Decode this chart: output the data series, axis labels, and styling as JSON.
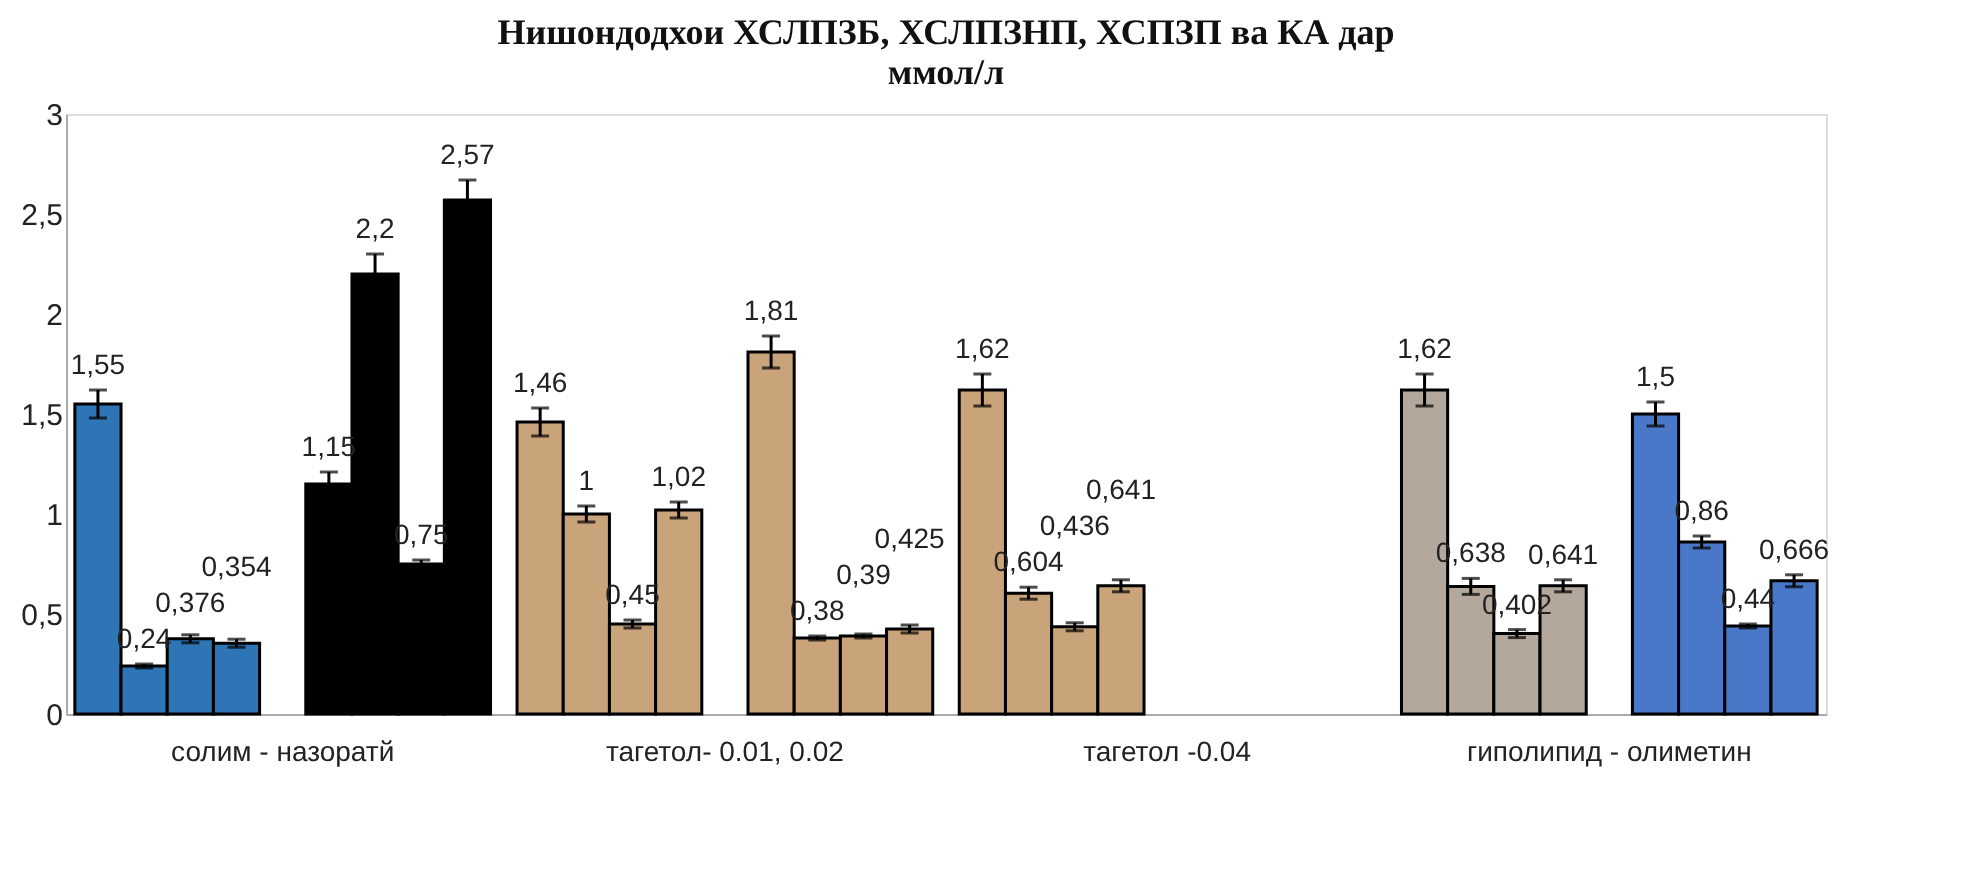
{
  "chart_data": {
    "type": "bar",
    "title": [
      "Нишондодхои ХСЛПЗБ, ХСЛПЗНП, ХСПЗП  ва КА  дар",
      "ммол/л"
    ],
    "categories": [
      "солим - назоратй",
      "тагетол- 0.01, 0.02",
      "тагетол -0.04",
      "гиполипид - олиметин"
    ],
    "series": [
      {
        "values": [
          1.55,
          1.46,
          1.62,
          1.62
        ],
        "colors": [
          "#2e75b6",
          "#c9a47a",
          "#c9a47a",
          "#b3a89b"
        ],
        "errors": [
          0.07,
          0.07,
          0.08,
          0.08
        ],
        "value_labels": [
          "1,55",
          "1,46",
          "1,62",
          "1,62"
        ]
      },
      {
        "values": [
          0.24,
          1,
          0.604,
          0.638
        ],
        "colors": [
          "#2e75b6",
          "#c9a47a",
          "#c9a47a",
          "#b3a89b"
        ],
        "errors": [
          0.01,
          0.04,
          0.03,
          0.04
        ],
        "value_labels": [
          "0,24",
          "1",
          "0,604",
          "0,638"
        ]
      },
      {
        "values": [
          0.376,
          0.45,
          0.436,
          0.402
        ],
        "colors": [
          "#2e75b6",
          "#c9a47a",
          "#c9a47a",
          "#b3a89b"
        ],
        "errors": [
          0.02,
          0.02,
          0.02,
          0.02
        ],
        "value_labels": [
          "0,376",
          "0,45",
          "0,436",
          "0,402"
        ]
      },
      {
        "values": [
          0.354,
          1.02,
          0.641,
          0.641
        ],
        "colors": [
          "#2e75b6",
          "#c9a47a",
          "#c9a47a",
          "#b3a89b"
        ],
        "errors": [
          0.02,
          0.04,
          0.03,
          0.03
        ],
        "value_labels": [
          "0,354",
          "1,02",
          "0,641",
          "0,641"
        ]
      },
      {
        "values": [
          1.15,
          1.81,
          null,
          1.5
        ],
        "colors": [
          "#000000",
          "#c9a47a",
          "#c9a47a",
          "#4a78c8"
        ],
        "errors": [
          0.06,
          0.08,
          null,
          0.06
        ],
        "value_labels": [
          "1,15",
          "1,81",
          null,
          "1,5"
        ]
      },
      {
        "values": [
          2.2,
          0.38,
          null,
          0.86
        ],
        "colors": [
          "#000000",
          "#c9a47a",
          "#c9a47a",
          "#4a78c8"
        ],
        "errors": [
          0.1,
          0.01,
          null,
          0.03
        ],
        "value_labels": [
          "2,2",
          "0,38",
          null,
          "0,86"
        ]
      },
      {
        "values": [
          0.75,
          0.39,
          null,
          0.44
        ],
        "colors": [
          "#000000",
          "#c9a47a",
          "#c9a47a",
          "#4a78c8"
        ],
        "errors": [
          0.02,
          0.01,
          null,
          0.01
        ],
        "value_labels": [
          "0,75",
          "0,39",
          null,
          "0,44"
        ]
      },
      {
        "values": [
          2.57,
          0.425,
          null,
          0.666
        ],
        "colors": [
          "#000000",
          "#c9a47a",
          "#c9a47a",
          "#4a78c8"
        ],
        "errors": [
          0.1,
          0.02,
          null,
          0.03
        ],
        "value_labels": [
          "2,57",
          "0,425",
          null,
          "0,666"
        ]
      }
    ],
    "ylim": [
      0,
      3
    ],
    "yticks": [
      0,
      {
        "value": 0.5,
        "label": "0,5"
      },
      1,
      {
        "value": 1.5,
        "label": "1,5"
      },
      2,
      {
        "value": 2.5,
        "label": "2,5"
      },
      3
    ],
    "grid": false
  }
}
